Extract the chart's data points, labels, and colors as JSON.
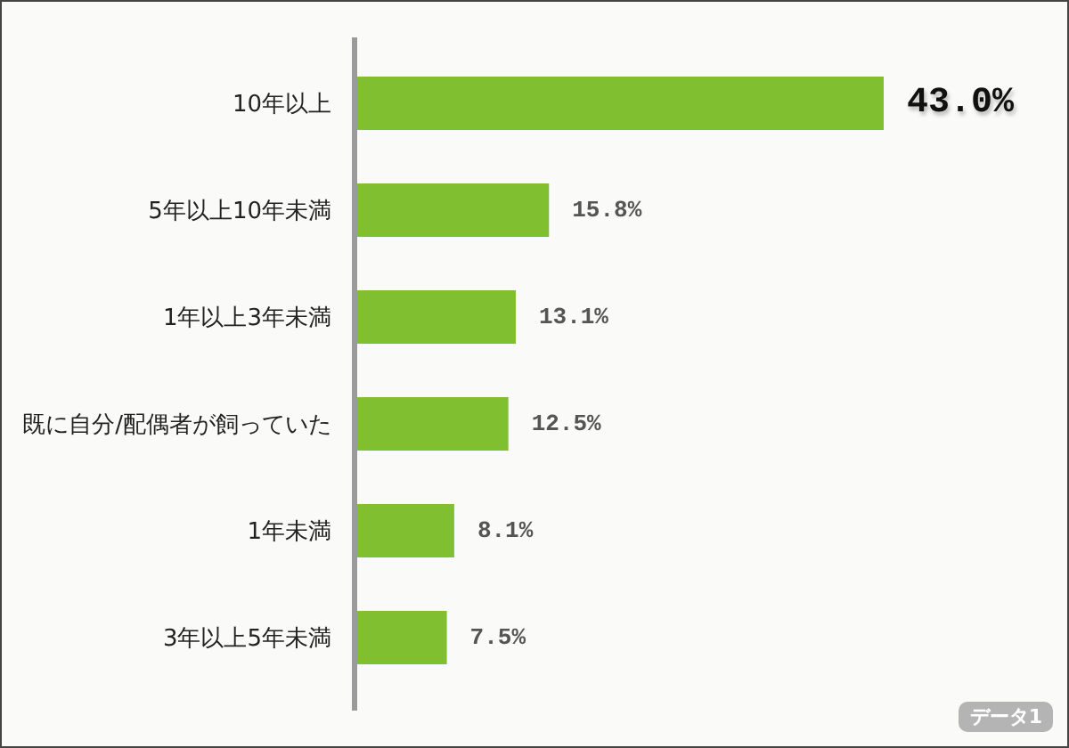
{
  "chart_data": {
    "type": "bar",
    "orientation": "horizontal",
    "categories": [
      "10年以上",
      "5年以上10年未満",
      "1年以上3年未満",
      "既に自分/配偶者が飼っていた",
      "1年未満",
      "3年以上5年未満"
    ],
    "values": [
      43.0,
      15.8,
      13.1,
      12.5,
      8.1,
      7.5
    ],
    "value_labels": [
      "43.0%",
      "15.8%",
      "13.1%",
      "12.5%",
      "8.1%",
      "7.5%"
    ],
    "color": "#80bf2f",
    "tick_labels": "y",
    "annotations": [
      "データ1"
    ]
  }
}
